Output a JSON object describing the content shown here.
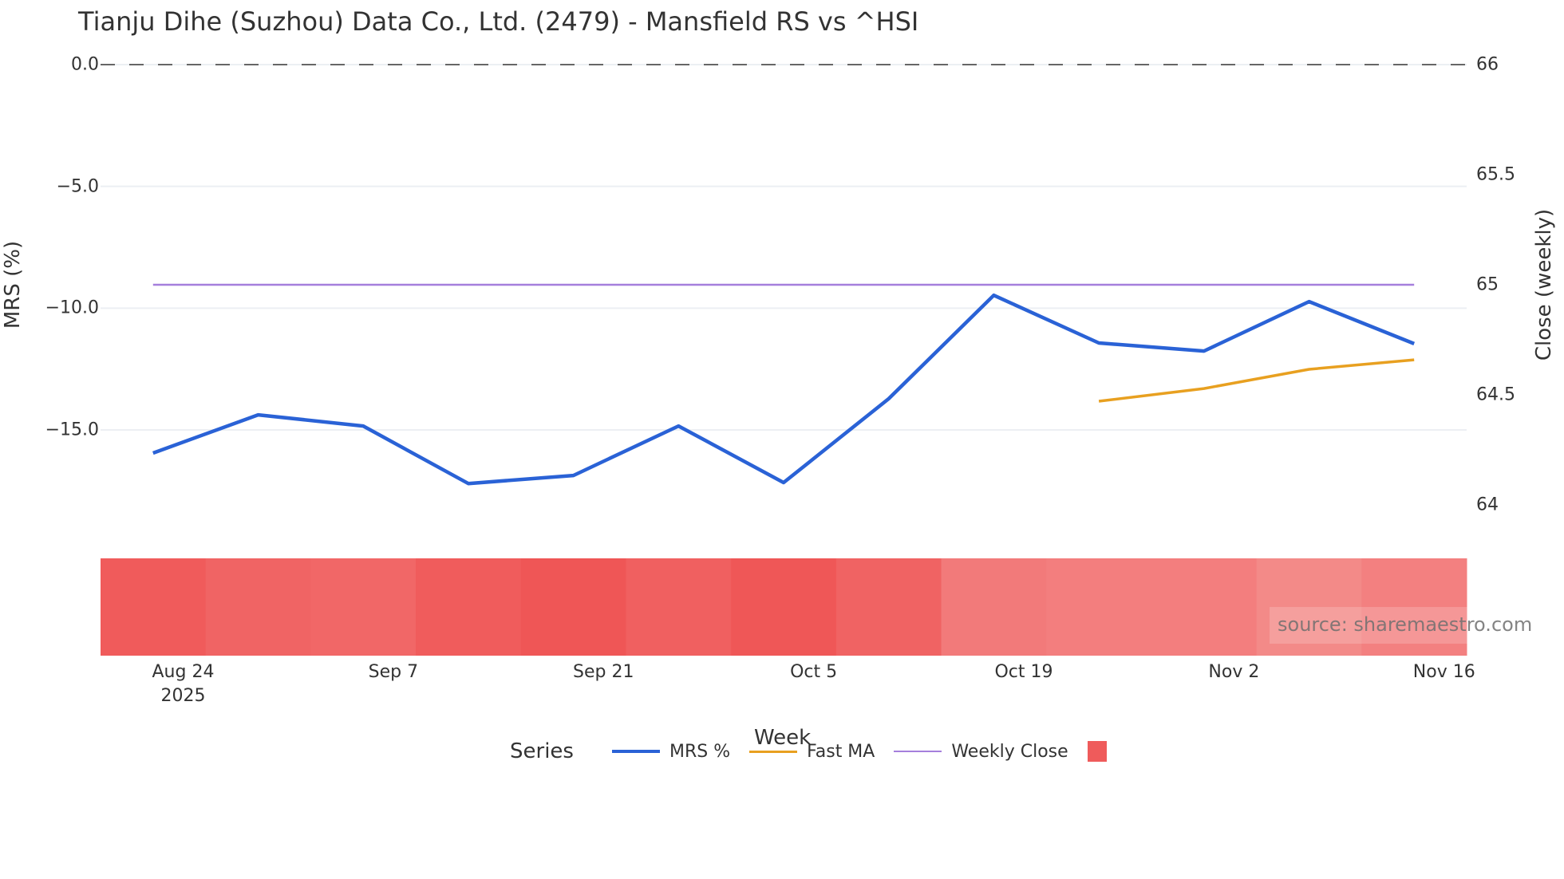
{
  "title": "Tianju Dihe (Suzhou) Data Co., Ltd. (2479) - Mansfield RS vs ^HSI",
  "left_axis": {
    "title": "MRS (%)",
    "ticks": [
      {
        "label": "0.0",
        "value": 0
      },
      {
        "label": "−5.0",
        "value": -5
      },
      {
        "label": "−10.0",
        "value": -10
      },
      {
        "label": "−15.0",
        "value": -15
      }
    ]
  },
  "right_axis": {
    "title": "Close (weekly)",
    "ticks": [
      {
        "label": "66",
        "value": 66
      },
      {
        "label": "65.5",
        "value": 65.5
      },
      {
        "label": "65",
        "value": 65
      },
      {
        "label": "64.5",
        "value": 64.5
      },
      {
        "label": "64",
        "value": 64
      }
    ]
  },
  "x_axis": {
    "title": "Week",
    "ticks": [
      {
        "label": "Aug 24",
        "sub": "2025"
      },
      {
        "label": "Sep 7",
        "sub": ""
      },
      {
        "label": "Sep 21",
        "sub": ""
      },
      {
        "label": "Oct 5",
        "sub": ""
      },
      {
        "label": "Oct 19",
        "sub": ""
      },
      {
        "label": "Nov 2",
        "sub": ""
      },
      {
        "label": "Nov 16",
        "sub": ""
      }
    ]
  },
  "legend": {
    "title": "Series",
    "items": [
      {
        "label": "MRS %",
        "color": "#2a62d6",
        "kind": "line",
        "width": 4
      },
      {
        "label": "Fast MA",
        "color": "#e8a020",
        "kind": "line",
        "width": 3
      },
      {
        "label": "Weekly Close",
        "color": "#a57fdc",
        "kind": "line",
        "width": 2
      },
      {
        "label": "",
        "color": "#ef5b5b",
        "kind": "box"
      }
    ]
  },
  "source": "source: sharemaestro.com",
  "colors": {
    "mrs": "#2a62d6",
    "fast_ma": "#e8a020",
    "weekly_close": "#a57fdc",
    "zero_line": "#666666",
    "grid": "#eceff3"
  },
  "chart_data": {
    "type": "line",
    "title": "Tianju Dihe (Suzhou) Data Co., Ltd. (2479) - Mansfield RS vs ^HSI",
    "xlabel": "Week",
    "ylabel": "MRS (%)",
    "y2label": "Close (weekly)",
    "ylim": [
      -19.5,
      0
    ],
    "y2lim": [
      63.75,
      66
    ],
    "grid": true,
    "legend_position": "bottom",
    "x": [
      "2025-08-22",
      "2025-08-29",
      "2025-09-05",
      "2025-09-12",
      "2025-09-19",
      "2025-09-26",
      "2025-10-03",
      "2025-10-10",
      "2025-10-17",
      "2025-10-24",
      "2025-10-31",
      "2025-11-07",
      "2025-11-14"
    ],
    "x_tick_labels": [
      "Aug 24 2025",
      "Sep 7",
      "Sep 21",
      "Oct 5",
      "Oct 19",
      "Nov 2",
      "Nov 16"
    ],
    "series": [
      {
        "name": "MRS %",
        "axis": "left",
        "values": [
          -15.95,
          -14.38,
          -14.84,
          -17.2,
          -16.87,
          -14.84,
          -17.16,
          -13.72,
          -9.47,
          -11.43,
          -11.76,
          -9.73,
          -11.46
        ]
      },
      {
        "name": "Fast MA",
        "axis": "left",
        "values": [
          null,
          null,
          null,
          null,
          null,
          null,
          null,
          null,
          null,
          -13.82,
          -13.3,
          -12.51,
          -12.12
        ]
      },
      {
        "name": "Weekly Close",
        "axis": "right",
        "values": [
          65,
          65,
          65,
          65,
          65,
          65,
          65,
          65,
          65,
          65,
          65,
          65,
          65
        ]
      }
    ],
    "heatmap_strip": {
      "description": "MRS intensity band per week",
      "colors": [
        "#f05b5b",
        "#f06464",
        "#f16767",
        "#f05c5c",
        "#ef5656",
        "#f06060",
        "#ef5757",
        "#f06363",
        "#f27a7a",
        "#f37e7e",
        "#f37e7e",
        "#f38a88",
        "#f38080"
      ]
    },
    "reference_lines": [
      {
        "axis": "left",
        "value": 0,
        "style": "dashed"
      }
    ],
    "annotations": [
      "source: sharemaestro.com"
    ]
  }
}
